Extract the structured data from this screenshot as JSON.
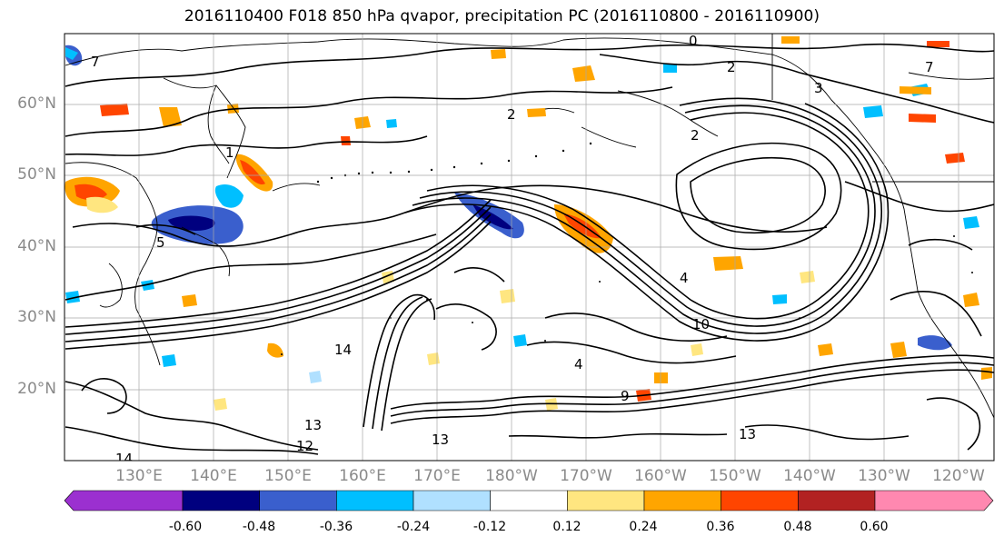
{
  "title": "2016110400 F018 850 hPa qvapor, precipitation PC (2016110800 - 2016110900)",
  "map": {
    "lon_range": [
      120,
      245
    ],
    "lat_range": [
      10,
      70
    ],
    "lat_ticks": [
      {
        "value": 60,
        "label": "60°N"
      },
      {
        "value": 50,
        "label": "50°N"
      },
      {
        "value": 40,
        "label": "40°N"
      },
      {
        "value": 30,
        "label": "30°N"
      },
      {
        "value": 20,
        "label": "20°N"
      }
    ],
    "lon_ticks": [
      {
        "value": 130,
        "label": "130°E"
      },
      {
        "value": 140,
        "label": "140°E"
      },
      {
        "value": 150,
        "label": "150°E"
      },
      {
        "value": 160,
        "label": "160°E"
      },
      {
        "value": 170,
        "label": "170°E"
      },
      {
        "value": 180,
        "label": "180°W"
      },
      {
        "value": 190,
        "label": "170°W"
      },
      {
        "value": 200,
        "label": "160°W"
      },
      {
        "value": 210,
        "label": "150°W"
      },
      {
        "value": 220,
        "label": "140°W"
      },
      {
        "value": 230,
        "label": "130°W"
      },
      {
        "value": 240,
        "label": "120°W"
      }
    ],
    "gridlines": true,
    "contour_labels": [
      "0",
      "1",
      "2",
      "2",
      "2",
      "3",
      "4",
      "4",
      "5",
      "7",
      "7",
      "9",
      "10",
      "12",
      "13",
      "13",
      "13",
      "14",
      "14"
    ]
  },
  "colorbar": {
    "levels": [
      "-0.60",
      "-0.48",
      "-0.36",
      "-0.24",
      "-0.12",
      "0.12",
      "0.24",
      "0.36",
      "0.48",
      "0.60"
    ],
    "colors": [
      "#9b30d0",
      "#00007f",
      "#3a5fcd",
      "#00bfff",
      "#b0e0ff",
      "#ffffff",
      "#ffe680",
      "#ffa500",
      "#ff4500",
      "#b22222",
      "#ff88b0"
    ],
    "extend": "both"
  }
}
